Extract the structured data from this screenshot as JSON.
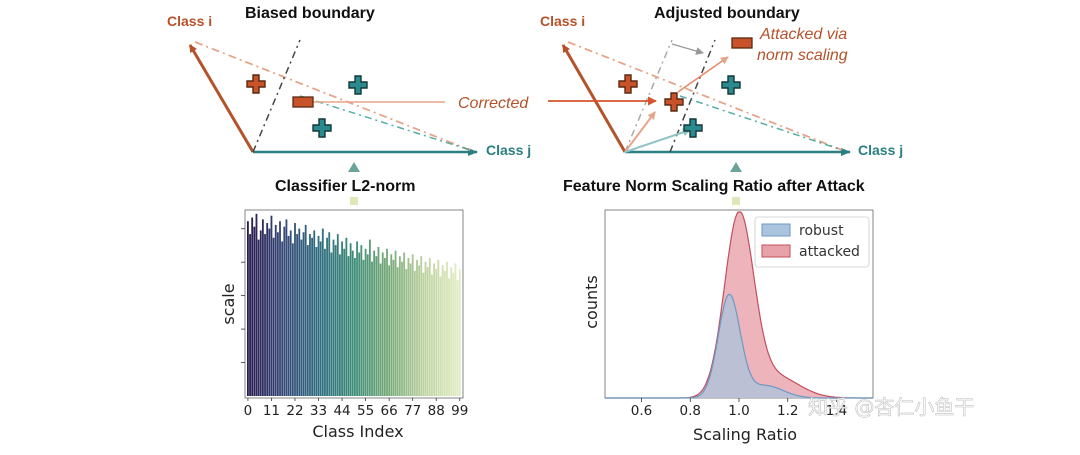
{
  "left_diagram": {
    "title": "Biased boundary",
    "class_i": "Class i",
    "class_j": "Class j",
    "annotation": "Corrected"
  },
  "right_diagram": {
    "title": "Adjusted boundary",
    "class_i": "Class i",
    "class_j": "Class j",
    "annotation_line1": "Attacked via",
    "annotation_line2": "norm scaling"
  },
  "watermark": "知乎 @杏仁小鱼干",
  "colors": {
    "orange": "#b5522a",
    "teal": "#2a7f83",
    "robust": "#a9c4dc",
    "attacked": "#e8a3aa",
    "attacked_line": "#c0505b",
    "robust_line": "#6a9ac4"
  },
  "chart_data": [
    {
      "type": "bar",
      "title": "Classifier L2-norm",
      "xlabel": "Class Index",
      "ylabel": "scale",
      "xticks": [
        "0",
        "11",
        "22",
        "33",
        "44",
        "55",
        "66",
        "77",
        "88",
        "99"
      ],
      "categories_range": [
        0,
        99
      ],
      "colormap": "viridis-like dark purple to light green",
      "ylim": [
        0,
        100
      ],
      "values": [
        95,
        88,
        97,
        92,
        99,
        85,
        90,
        96,
        88,
        94,
        91,
        98,
        86,
        93,
        89,
        95,
        84,
        92,
        96,
        87,
        90,
        83,
        94,
        88,
        91,
        85,
        89,
        93,
        82,
        88,
        86,
        90,
        81,
        87,
        84,
        91,
        80,
        86,
        89,
        78,
        85,
        82,
        88,
        77,
        84,
        80,
        86,
        76,
        83,
        79,
        75,
        84,
        78,
        82,
        74,
        80,
        77,
        85,
        73,
        79,
        76,
        81,
        72,
        78,
        75,
        80,
        71,
        77,
        74,
        79,
        70,
        76,
        73,
        78,
        69,
        75,
        72,
        77,
        68,
        74,
        71,
        76,
        67,
        73,
        70,
        75,
        66,
        72,
        69,
        74,
        65,
        71,
        68,
        73,
        64,
        70,
        67,
        72,
        63,
        69
      ]
    },
    {
      "type": "area",
      "title": "Feature Norm Scaling Ratio after Attack",
      "xlabel": "Scaling Ratio",
      "ylabel": "counts",
      "xticks": [
        "0.6",
        "0.8",
        "1.0",
        "1.2",
        "1.4"
      ],
      "xlim": [
        0.45,
        1.55
      ],
      "legend": [
        "robust",
        "attacked"
      ],
      "legend_position": "top-right",
      "series": [
        {
          "name": "robust",
          "center": 0.96,
          "sd": 0.045,
          "peak": 0.55
        },
        {
          "name": "attacked",
          "center": 1.0,
          "sd": 0.06,
          "peak": 0.97
        }
      ]
    }
  ]
}
